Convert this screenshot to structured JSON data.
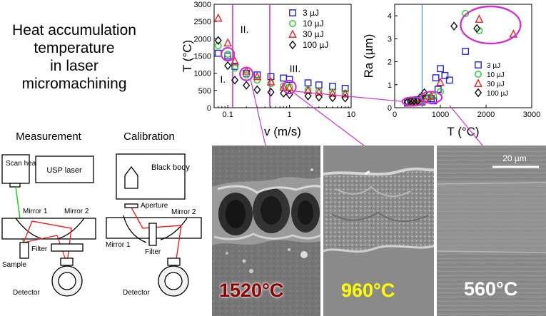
{
  "title_lines": [
    "Heat accumulation",
    "temperature",
    "in laser",
    "micromachining"
  ],
  "setup": {
    "measurement": {
      "heading": "Measurement",
      "scan_head": "Scan head",
      "usp_laser": "USP laser",
      "mirror1": "Mirror 1",
      "mirror2": "Mirror 2",
      "filter": "Filter",
      "sample": "Sample",
      "detector": "Detector"
    },
    "calibration": {
      "heading": "Calibration",
      "black_body": "Black body",
      "aperture": "Aperture",
      "mirror1": "Mirror 1",
      "mirror2": "Mirror 2",
      "filter": "Filter",
      "detector": "Detector"
    }
  },
  "sem_images": [
    {
      "label": "1520°C",
      "color": "#8b0000"
    },
    {
      "label": "960°C",
      "color": "#ffff00"
    },
    {
      "label": "560°C",
      "color": "#ffffff",
      "scalebar": "20 µm"
    }
  ],
  "chart_data": [
    {
      "type": "scatter",
      "xlabel": "v (m/s)",
      "ylabel": "T (°C)",
      "xscale": "log",
      "xlim": [
        0.06,
        10
      ],
      "ylim": [
        0,
        3000
      ],
      "xticks": [
        {
          "v": 0.1,
          "label": "0.1"
        },
        {
          "v": 1,
          "label": "1"
        },
        {
          "v": 10,
          "label": "10"
        }
      ],
      "yticks": [
        0,
        500,
        1000,
        1500,
        2000,
        2500,
        3000
      ],
      "regions": [
        "I.",
        "II.",
        "III."
      ],
      "region_boundaries": [
        0.12,
        0.48
      ],
      "legend_position": "top-right",
      "series": [
        {
          "name": "3 µJ",
          "marker": "square",
          "color": "#2222dd",
          "points": [
            [
              0.07,
              1580
            ],
            [
              0.1,
              1500
            ],
            [
              0.13,
              1200
            ],
            [
              0.2,
              1000
            ],
            [
              0.3,
              950
            ],
            [
              0.5,
              900
            ],
            [
              0.8,
              860
            ],
            [
              1,
              820
            ],
            [
              2,
              720
            ],
            [
              3,
              660
            ],
            [
              5,
              620
            ],
            [
              8,
              560
            ]
          ]
        },
        {
          "name": "10 µJ",
          "marker": "circle",
          "color": "#22cc22",
          "points": [
            [
              0.07,
              1800
            ],
            [
              0.1,
              1550
            ],
            [
              0.13,
              1150
            ],
            [
              0.2,
              950
            ],
            [
              0.3,
              800
            ],
            [
              0.5,
              700
            ],
            [
              0.8,
              630
            ],
            [
              1,
              600
            ],
            [
              2,
              520
            ],
            [
              3,
              480
            ],
            [
              5,
              450
            ],
            [
              8,
              420
            ]
          ]
        },
        {
          "name": "30 µJ",
          "marker": "triangle",
          "color": "#ee2222",
          "points": [
            [
              0.07,
              2600
            ],
            [
              0.1,
              1880
            ],
            [
              0.13,
              1350
            ],
            [
              0.2,
              1060
            ],
            [
              0.3,
              900
            ],
            [
              0.5,
              750
            ],
            [
              0.8,
              600
            ],
            [
              1,
              580
            ],
            [
              2,
              500
            ],
            [
              3,
              450
            ],
            [
              5,
              420
            ],
            [
              8,
              400
            ]
          ]
        },
        {
          "name": "100 µJ",
          "marker": "diamond",
          "color": "#111111",
          "points": [
            [
              0.07,
              1950
            ],
            [
              0.1,
              1220
            ],
            [
              0.13,
              800
            ],
            [
              0.2,
              650
            ],
            [
              0.3,
              520
            ],
            [
              0.5,
              450
            ],
            [
              0.8,
              420
            ],
            [
              1,
              380
            ],
            [
              2,
              340
            ],
            [
              3,
              310
            ],
            [
              5,
              290
            ],
            [
              8,
              280
            ]
          ]
        }
      ],
      "highlights": [
        [
          0.1,
          1550
        ],
        [
          0.2,
          980
        ],
        [
          1,
          600
        ]
      ]
    },
    {
      "type": "scatter",
      "xlabel": "T (°C)",
      "ylabel": "Ra (µm)",
      "xlim": [
        0,
        3000
      ],
      "ylim": [
        0,
        4.5
      ],
      "xticks": [
        {
          "v": 0,
          "label": "0"
        },
        {
          "v": 1000,
          "label": "1000"
        },
        {
          "v": 2000,
          "label": "2000"
        },
        {
          "v": 3000,
          "label": "3000"
        }
      ],
      "yticks": [
        0,
        1,
        2,
        3,
        4
      ],
      "threshold_x": 600,
      "legend_position": "bottom-right",
      "series": [
        {
          "name": "3 µJ",
          "marker": "square",
          "color": "#2222dd",
          "points": [
            [
              280,
              0.2
            ],
            [
              350,
              0.25
            ],
            [
              420,
              0.3
            ],
            [
              500,
              0.35
            ],
            [
              600,
              0.25
            ],
            [
              700,
              0.4
            ],
            [
              800,
              0.4
            ],
            [
              850,
              0.3
            ],
            [
              900,
              1.3
            ],
            [
              950,
              0.8
            ],
            [
              1000,
              1.7
            ],
            [
              1100,
              1.4
            ],
            [
              1200,
              1.2
            ],
            [
              1550,
              2.45
            ]
          ]
        },
        {
          "name": "10 µJ",
          "marker": "circle",
          "color": "#22cc22",
          "points": [
            [
              300,
              0.25
            ],
            [
              400,
              0.25
            ],
            [
              500,
              0.3
            ],
            [
              600,
              0.35
            ],
            [
              750,
              0.45
            ],
            [
              850,
              0.5
            ],
            [
              1000,
              0.7
            ],
            [
              1550,
              4.1
            ],
            [
              1850,
              3.35
            ]
          ]
        },
        {
          "name": "30 µJ",
          "marker": "triangle",
          "color": "#ee2222",
          "points": [
            [
              350,
              0.2
            ],
            [
              450,
              0.25
            ],
            [
              560,
              0.3
            ],
            [
              650,
              0.4
            ],
            [
              800,
              0.5
            ],
            [
              1000,
              1.1
            ],
            [
              1850,
              3.85
            ],
            [
              2600,
              3.2
            ]
          ]
        },
        {
          "name": "100 µJ",
          "marker": "diamond",
          "color": "#111111",
          "points": [
            [
              280,
              0.25
            ],
            [
              350,
              0.3
            ],
            [
              420,
              0.3
            ],
            [
              500,
              0.3
            ],
            [
              560,
              0.45
            ],
            [
              650,
              0.65
            ],
            [
              1300,
              3.55
            ],
            [
              1800,
              3.45
            ]
          ]
        }
      ]
    }
  ]
}
